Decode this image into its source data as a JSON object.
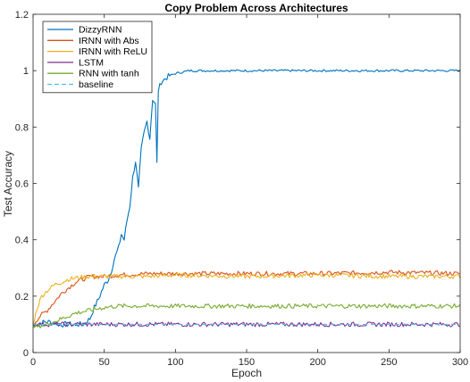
{
  "chart_data": {
    "type": "line",
    "title": "Copy Problem Across Architectures",
    "xlabel": "Epoch",
    "ylabel": "Test Accuracy",
    "xlim": [
      0,
      300
    ],
    "ylim": [
      0,
      1.2
    ],
    "xticks": [
      0,
      50,
      100,
      150,
      200,
      250,
      300
    ],
    "yticks": [
      0,
      0.2,
      0.4,
      0.6,
      0.8,
      1,
      1.2
    ],
    "xtick_labels": [
      "0",
      "50",
      "100",
      "150",
      "200",
      "250",
      "300"
    ],
    "ytick_labels": [
      "0",
      "0.2",
      "0.4",
      "0.6",
      "0.8",
      "1",
      "1.2"
    ],
    "grid": false,
    "legend_position": "top-left",
    "series": [
      {
        "name": "DizzyRNN",
        "color": "#0072BD",
        "style": "solid",
        "x": [
          0,
          10,
          20,
          30,
          35,
          40,
          43,
          46,
          50,
          53,
          55,
          57,
          60,
          62,
          64,
          66,
          68,
          70,
          72,
          74,
          76,
          78,
          80,
          82,
          84,
          86,
          87,
          88,
          90,
          95,
          100,
          110,
          120,
          150,
          200,
          250,
          300
        ],
        "y": [
          0.1,
          0.11,
          0.1,
          0.1,
          0.1,
          0.12,
          0.16,
          0.19,
          0.24,
          0.26,
          0.29,
          0.33,
          0.37,
          0.42,
          0.4,
          0.47,
          0.52,
          0.62,
          0.68,
          0.58,
          0.72,
          0.78,
          0.82,
          0.76,
          0.9,
          0.88,
          0.67,
          0.93,
          0.96,
          0.98,
          0.99,
          1.0,
          1.0,
          1.0,
          1.0,
          1.0,
          1.0
        ]
      },
      {
        "name": "IRNN with Abs",
        "color": "#D95319",
        "style": "solid",
        "x": [
          0,
          5,
          10,
          15,
          20,
          25,
          30,
          35,
          40,
          50,
          60,
          80,
          100,
          120,
          150,
          200,
          250,
          300
        ],
        "y": [
          0.1,
          0.13,
          0.15,
          0.18,
          0.21,
          0.23,
          0.25,
          0.26,
          0.27,
          0.27,
          0.275,
          0.28,
          0.28,
          0.28,
          0.28,
          0.28,
          0.285,
          0.28
        ]
      },
      {
        "name": "IRNN with ReLU",
        "color": "#EDB120",
        "style": "solid",
        "x": [
          0,
          3,
          6,
          10,
          15,
          20,
          25,
          30,
          40,
          50,
          60,
          80,
          100,
          150,
          200,
          250,
          300
        ],
        "y": [
          0.1,
          0.16,
          0.2,
          0.22,
          0.24,
          0.25,
          0.26,
          0.265,
          0.27,
          0.27,
          0.27,
          0.27,
          0.275,
          0.27,
          0.275,
          0.27,
          0.27
        ]
      },
      {
        "name": "LSTM",
        "color": "#7E2F8E",
        "style": "solid",
        "x": [
          0,
          50,
          100,
          150,
          200,
          250,
          300
        ],
        "y": [
          0.1,
          0.1,
          0.1,
          0.1,
          0.1,
          0.1,
          0.1
        ]
      },
      {
        "name": "RNN with tanh",
        "color": "#77AC30",
        "style": "solid",
        "x": [
          0,
          10,
          20,
          30,
          40,
          50,
          60,
          80,
          100,
          150,
          200,
          250,
          300
        ],
        "y": [
          0.09,
          0.1,
          0.12,
          0.14,
          0.15,
          0.16,
          0.165,
          0.165,
          0.165,
          0.165,
          0.165,
          0.165,
          0.165
        ]
      },
      {
        "name": "baseline",
        "color": "#4DBEEE",
        "style": "dashed",
        "x": [
          0,
          300
        ],
        "y": [
          0.1,
          0.1
        ]
      }
    ]
  }
}
